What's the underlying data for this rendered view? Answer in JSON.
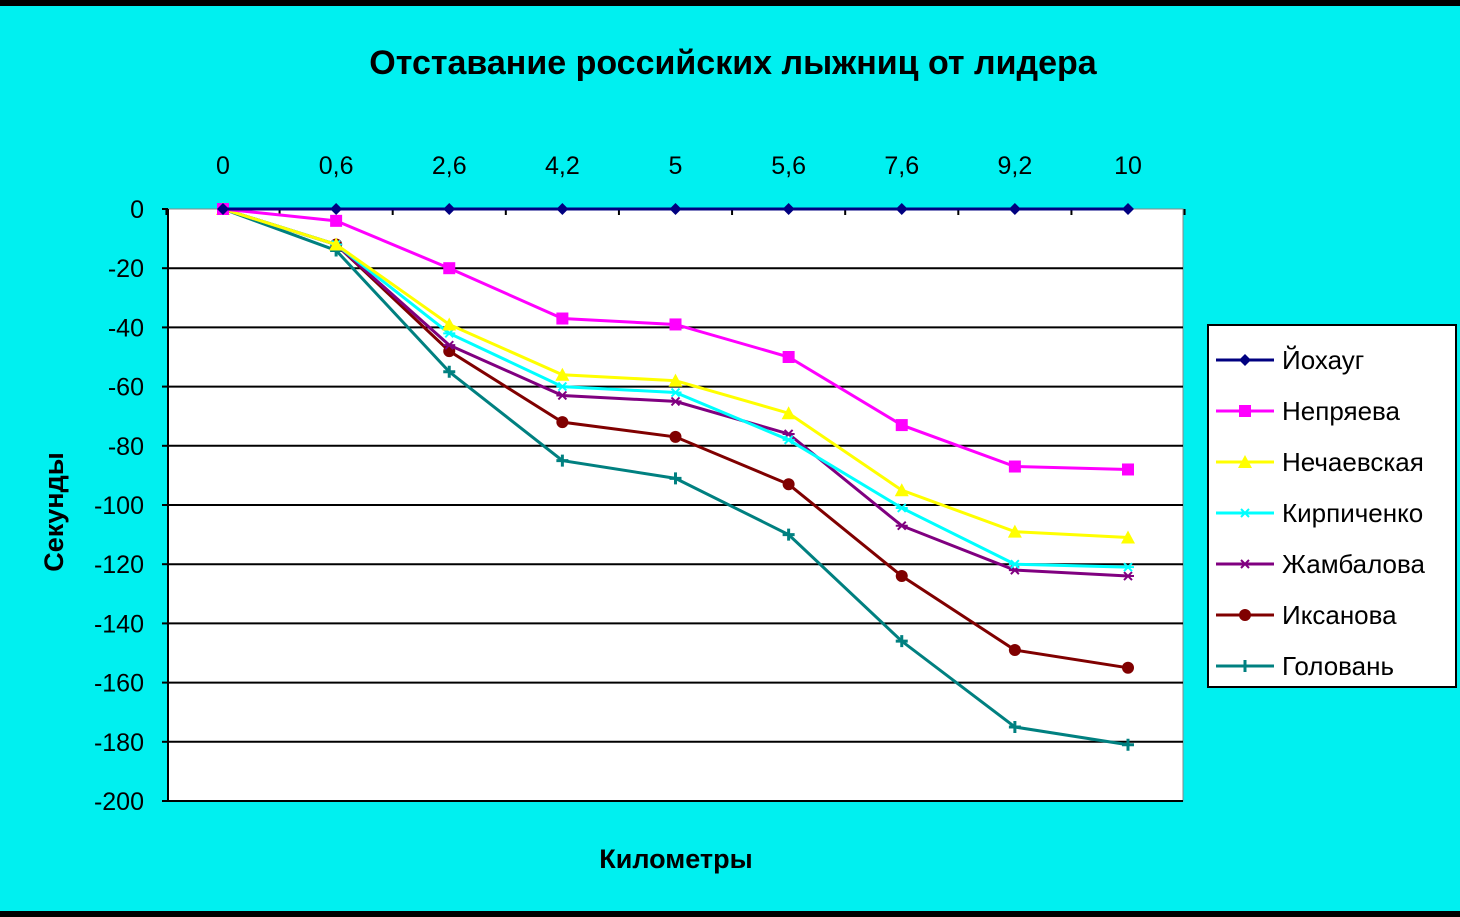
{
  "chart_data": {
    "type": "line",
    "title": "Отставание российских лыжниц от лидера",
    "xlabel": "Километры",
    "ylabel": "Секунды",
    "categories": [
      "0",
      "0,6",
      "2,6",
      "4,2",
      "5",
      "5,6",
      "7,6",
      "9,2",
      "10"
    ],
    "ylim": [
      -200,
      0
    ],
    "yticks": [
      0,
      -20,
      -40,
      -60,
      -80,
      -100,
      -120,
      -140,
      -160,
      -180,
      -200
    ],
    "x_axis_position": "top",
    "grid": true,
    "legend_position": "right",
    "series": [
      {
        "name": "Йохауг",
        "color": "#000080",
        "marker": "diamond",
        "values": [
          0,
          0,
          0,
          0,
          0,
          0,
          0,
          0,
          0
        ]
      },
      {
        "name": "Непряева",
        "color": "#ff00ff",
        "marker": "square",
        "values": [
          0,
          -4,
          -20,
          -37,
          -39,
          -50,
          -73,
          -87,
          -88
        ]
      },
      {
        "name": "Нечаевская",
        "color": "#ffff00",
        "marker": "triangle",
        "values": [
          0,
          -12,
          -39,
          -56,
          -58,
          -69,
          -95,
          -109,
          -111
        ]
      },
      {
        "name": "Кирпиченко",
        "color": "#00ffff",
        "marker": "star",
        "values": [
          0,
          -12,
          -42,
          -60,
          -62,
          -78,
          -101,
          -120,
          -121
        ]
      },
      {
        "name": "Жамбалова",
        "color": "#800080",
        "marker": "star",
        "values": [
          0,
          -12,
          -46,
          -63,
          -65,
          -76,
          -107,
          -122,
          -124
        ]
      },
      {
        "name": "Иксанова",
        "color": "#800000",
        "marker": "circle",
        "values": [
          0,
          -12,
          -48,
          -72,
          -77,
          -93,
          -124,
          -149,
          -155
        ]
      },
      {
        "name": "Головань",
        "color": "#008080",
        "marker": "plus",
        "values": [
          0,
          -14,
          -55,
          -85,
          -91,
          -110,
          -146,
          -175,
          -181
        ]
      }
    ]
  }
}
